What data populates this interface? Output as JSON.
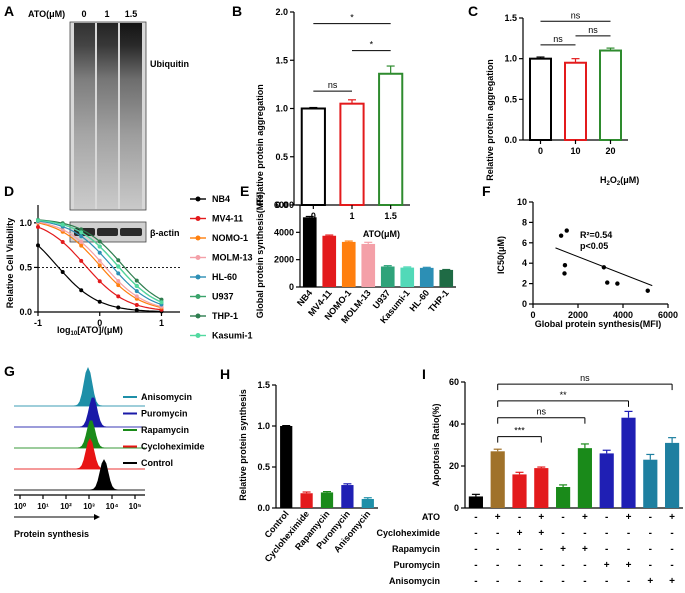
{
  "panels": {
    "A": {
      "letter": "A",
      "treatment_label": "ATO(μM)",
      "doses": [
        "0",
        "1",
        "1.5"
      ],
      "blot_labels": [
        "Ubiquitin",
        "β-actin"
      ]
    },
    "B": {
      "letter": "B",
      "ylabel": "Relative protein aggregation",
      "xlabel": "ATO(μM)",
      "categories": [
        "0",
        "1",
        "1.5"
      ],
      "values": [
        1.0,
        1.05,
        1.36
      ],
      "errors": [
        0.01,
        0.04,
        0.08
      ],
      "colors": [
        "#000000",
        "#e31a1c",
        "#2e8b2e"
      ],
      "ylim": [
        0,
        2.0
      ],
      "yticks": [
        "0.0",
        "0.5",
        "1.0",
        "1.5",
        "2.0"
      ],
      "sig": [
        "ns",
        "*",
        "*"
      ]
    },
    "C": {
      "letter": "C",
      "ylabel": "Relative protein aggregation",
      "xlabel_main": "H",
      "xlabel_sub": "2",
      "xlabel_mid": "O",
      "xlabel_sub2": "2",
      "xlabel_end": "(μM)",
      "categories": [
        "0",
        "10",
        "20"
      ],
      "values": [
        1.0,
        0.95,
        1.1
      ],
      "errors": [
        0.02,
        0.05,
        0.03
      ],
      "colors": [
        "#000000",
        "#e31a1c",
        "#2e8b2e"
      ],
      "ylim": [
        0,
        1.5
      ],
      "yticks": [
        "0.0",
        "0.5",
        "1.0",
        "1.5"
      ],
      "sig": [
        "ns",
        "ns",
        "ns"
      ]
    },
    "D": {
      "letter": "D",
      "ylabel": "Relative Cell Viability",
      "xlabel_pre": "log",
      "xlabel_sub": "10",
      "xlabel_post": "[ATO]/(μM)",
      "yticks": [
        "0.0",
        "0.5",
        "1.0"
      ],
      "xticks": [
        "-1",
        "0",
        "1"
      ],
      "series": [
        {
          "name": "NB4",
          "color": "#000000",
          "marker": "circle",
          "ic50": 0.2
        },
        {
          "name": "MV4-11",
          "color": "#e31a1c",
          "marker": "square",
          "ic50": 0.55
        },
        {
          "name": "NOMO-1",
          "color": "#ff7f0e",
          "marker": "triangle",
          "ic50": 0.9
        },
        {
          "name": "MOLM-13",
          "color": "#f4a0a8",
          "marker": "triangle-down",
          "ic50": 1.0
        },
        {
          "name": "HL-60",
          "color": "#2c8fb5",
          "marker": "diamond",
          "ic50": 1.25
        },
        {
          "name": "U937",
          "color": "#3aa36a",
          "marker": "circle-open",
          "ic50": 1.5
        },
        {
          "name": "THP-1",
          "color": "#2e7d4f",
          "marker": "square-open",
          "ic50": 1.75
        },
        {
          "name": "Kasumi-1",
          "color": "#52d9a0",
          "marker": "triangle",
          "ic50": 1.35
        }
      ]
    },
    "E": {
      "letter": "E",
      "ylabel": "Global protein synthesis(MFI)",
      "categories": [
        "NB4",
        "MV4-11",
        "NOMO-1",
        "MOLM-13",
        "U937",
        "Kasumi-1",
        "HL-60",
        "THP-1"
      ],
      "values": [
        5100,
        3750,
        3300,
        3150,
        1500,
        1420,
        1400,
        1250
      ],
      "errors": [
        60,
        50,
        60,
        120,
        60,
        50,
        40,
        30
      ],
      "colors": [
        "#000000",
        "#e31a1c",
        "#ff7f0e",
        "#f4a0a8",
        "#2ea37a",
        "#52d9b8",
        "#2c8fb5",
        "#1f6b45"
      ],
      "ylim": [
        0,
        6000
      ],
      "yticks": [
        "0",
        "2000",
        "4000",
        "6000"
      ]
    },
    "F": {
      "letter": "F",
      "ylabel": "IC50(μM)",
      "xlabel": "Global protein synthesis(MFI)",
      "x": [
        1250,
        1400,
        1420,
        1500,
        3150,
        3300,
        3750,
        5100
      ],
      "y": [
        6.7,
        3.0,
        3.8,
        7.2,
        3.6,
        2.1,
        2.0,
        1.3
      ],
      "xticks": [
        "0",
        "2000",
        "4000",
        "6000"
      ],
      "yticks": [
        "0",
        "2",
        "4",
        "6",
        "8",
        "10"
      ],
      "annot_r2": "R²=0.54",
      "annot_p": "p<0.05"
    },
    "G": {
      "letter": "G",
      "xlabel": "Protein synthesis",
      "xticks": [
        "10⁰",
        "10¹",
        "10²",
        "10³",
        "10⁴",
        "10⁵"
      ],
      "legend": [
        {
          "name": "Anisomycin",
          "color": "#1e8fa8"
        },
        {
          "name": "Puromycin",
          "color": "#1a1aa8"
        },
        {
          "name": "Rapamycin",
          "color": "#1a8a1a"
        },
        {
          "name": "Cycloheximide",
          "color": "#e81414"
        },
        {
          "name": "Control",
          "color": "#000000"
        }
      ]
    },
    "H": {
      "letter": "H",
      "ylabel": "Relative protein synthesis",
      "categories": [
        "Control",
        "Cycloheximide",
        "Rapamycin",
        "Puromycin",
        "Anisomycin"
      ],
      "values": [
        1.0,
        0.18,
        0.19,
        0.28,
        0.11
      ],
      "errors": [
        0.005,
        0.015,
        0.01,
        0.015,
        0.015
      ],
      "colors": [
        "#000000",
        "#e31a1c",
        "#1a8a1a",
        "#1f1fb4",
        "#1e8fa8"
      ],
      "ylim": [
        0,
        1.5
      ],
      "yticks": [
        "0.0",
        "0.5",
        "1.0",
        "1.5"
      ]
    },
    "I": {
      "letter": "I",
      "ylabel": "Apoptosis Ratio(%)",
      "values": [
        5.5,
        27,
        16,
        19,
        10,
        28.5,
        26,
        43,
        23,
        31
      ],
      "errors": [
        1,
        1,
        1,
        0.5,
        1,
        2,
        1.5,
        3,
        2.5,
        2.5
      ],
      "colors": [
        "#000000",
        "#a0722a",
        "#e31a1c",
        "#e31a1c",
        "#1a8a1a",
        "#1a8a1a",
        "#1f1fb4",
        "#1f1fb4",
        "#1e7fa0",
        "#1e7fa0"
      ],
      "ylim": [
        0,
        60
      ],
      "yticks": [
        "0",
        "20",
        "40",
        "60"
      ],
      "row_labels": [
        "ATO",
        "Cycloheximide",
        "Rapamycin",
        "Puromycin",
        "Anisomycin"
      ],
      "matrix": [
        [
          "-",
          "+",
          "-",
          "+",
          "-",
          "+",
          "-",
          "+",
          "-",
          "+"
        ],
        [
          "-",
          "-",
          "+",
          "+",
          "-",
          "-",
          "-",
          "-",
          "-",
          "-"
        ],
        [
          "-",
          "-",
          "-",
          "-",
          "+",
          "+",
          "-",
          "-",
          "-",
          "-"
        ],
        [
          "-",
          "-",
          "-",
          "-",
          "-",
          "-",
          "+",
          "+",
          "-",
          "-"
        ],
        [
          "-",
          "-",
          "-",
          "-",
          "-",
          "-",
          "-",
          "-",
          "+",
          "+"
        ]
      ],
      "sig": [
        "***",
        "ns",
        "**",
        "ns"
      ]
    }
  },
  "chart_data": [
    {
      "type": "bar",
      "panel": "B",
      "categories": [
        "0",
        "1",
        "1.5"
      ],
      "values": [
        1.0,
        1.05,
        1.36
      ],
      "ylabel": "Relative protein aggregation",
      "xlabel": "ATO(μM)",
      "ylim": [
        0,
        2.0
      ]
    },
    {
      "type": "bar",
      "panel": "C",
      "categories": [
        "0",
        "10",
        "20"
      ],
      "values": [
        1.0,
        0.95,
        1.1
      ],
      "ylabel": "Relative protein aggregation",
      "xlabel": "H2O2(μM)",
      "ylim": [
        0,
        1.5
      ]
    },
    {
      "type": "line",
      "panel": "D",
      "ylabel": "Relative Cell Viability",
      "xlabel": "log10[ATO]/(μM)",
      "series": [
        "NB4",
        "MV4-11",
        "NOMO-1",
        "MOLM-13",
        "HL-60",
        "U937",
        "THP-1",
        "Kasumi-1"
      ]
    },
    {
      "type": "bar",
      "panel": "E",
      "categories": [
        "NB4",
        "MV4-11",
        "NOMO-1",
        "MOLM-13",
        "U937",
        "Kasumi-1",
        "HL-60",
        "THP-1"
      ],
      "values": [
        5100,
        3750,
        3300,
        3150,
        1500,
        1420,
        1400,
        1250
      ],
      "ylabel": "Global protein synthesis(MFI)",
      "ylim": [
        0,
        6000
      ]
    },
    {
      "type": "scatter",
      "panel": "F",
      "x": [
        1250,
        1400,
        1420,
        1500,
        3150,
        3300,
        3750,
        5100
      ],
      "y": [
        6.7,
        3.0,
        3.8,
        7.2,
        3.6,
        2.1,
        2.0,
        1.3
      ],
      "xlabel": "Global protein synthesis(MFI)",
      "ylabel": "IC50(μM)"
    },
    {
      "type": "bar",
      "panel": "H",
      "categories": [
        "Control",
        "Cycloheximide",
        "Rapamycin",
        "Puromycin",
        "Anisomycin"
      ],
      "values": [
        1.0,
        0.18,
        0.19,
        0.28,
        0.11
      ],
      "ylabel": "Relative protein synthesis",
      "ylim": [
        0,
        1.5
      ]
    },
    {
      "type": "bar",
      "panel": "I",
      "values": [
        5.5,
        27,
        16,
        19,
        10,
        28.5,
        26,
        43,
        23,
        31
      ],
      "ylabel": "Apoptosis Ratio(%)",
      "ylim": [
        0,
        60
      ]
    }
  ]
}
